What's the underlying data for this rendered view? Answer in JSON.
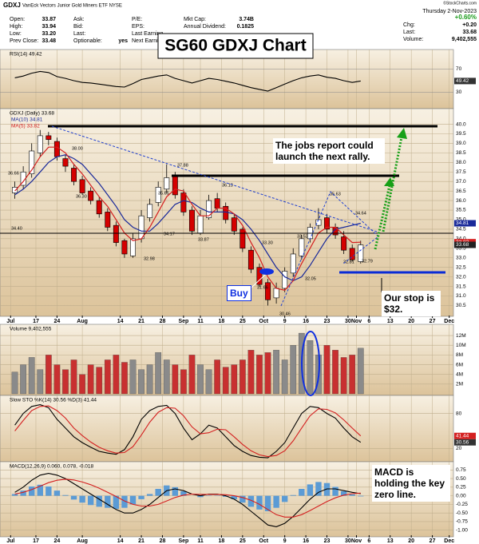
{
  "title": "SG60 GDXJ Chart",
  "header": {
    "symbol": "GDXJ",
    "name": "VanEck Vectors Junior Gold Miners ETF  NYSE",
    "copyright": "©StockCharts.com",
    "date": "Thursday  2-Nov-2023",
    "col1": [
      [
        "Open:",
        "33.87"
      ],
      [
        "High:",
        "33.94"
      ],
      [
        "Low:",
        "33.20"
      ],
      [
        "Prev Close:",
        "33.48"
      ]
    ],
    "col2": [
      [
        "Ask:"
      ],
      [
        "Bid:"
      ],
      [
        "Last:"
      ],
      [
        "Optionable:",
        "yes"
      ]
    ],
    "col3": [
      [
        "P/E:"
      ],
      [
        "EPS:"
      ],
      [
        "Last Earning"
      ],
      [
        "Next Earning"
      ]
    ],
    "col4": [
      [
        "Mkt Cap:",
        "3.74B"
      ],
      [
        "Annual Dividend:",
        "0.1825"
      ]
    ],
    "col5": [
      [
        "+0.60%"
      ],
      [
        "Chg:",
        "+0.20"
      ],
      [
        "Last:",
        "33.68"
      ],
      [
        "Volume:",
        "9,402,555"
      ]
    ]
  },
  "annotations": {
    "jobs": "The jobs report could launch the next rally.",
    "buy": "Buy",
    "stop": "Our stop is $32.",
    "macd": "MACD is holding the key zero line."
  },
  "chart_data": [
    {
      "type": "line",
      "title": "RSI(14) 49.42",
      "ylim": [
        10,
        90
      ],
      "yticks": [
        30,
        70
      ],
      "grid": true,
      "series": [
        {
          "name": "RSI(14)",
          "color": "#000000",
          "values": [
            55,
            58,
            63,
            66,
            64,
            57,
            54,
            50,
            47,
            46,
            44,
            42,
            40,
            39,
            45,
            52,
            55,
            58,
            60,
            54,
            50,
            46,
            50,
            54,
            52,
            49,
            46,
            42,
            38,
            35,
            32,
            38,
            44,
            50,
            55,
            58,
            60,
            56,
            54,
            50,
            47,
            49.42
          ]
        }
      ]
    },
    {
      "type": "candlestick",
      "title": "GDXJ (Daily) 33.68",
      "grid": true,
      "x": [
        4,
        6,
        8,
        10,
        12,
        14,
        16,
        18,
        20,
        22,
        24,
        26,
        28,
        30,
        32,
        34,
        36,
        38,
        40,
        42,
        44,
        46,
        48,
        50,
        52,
        54,
        56,
        58,
        60,
        62,
        64,
        66,
        68,
        70,
        72,
        74,
        76,
        78,
        80,
        82,
        84,
        86
      ],
      "xlim": [
        2,
        108
      ],
      "xticks": [
        {
          "value": 3,
          "label": "Jul"
        },
        {
          "value": 9,
          "label": "17"
        },
        {
          "value": 14,
          "label": "24"
        },
        {
          "value": 20,
          "label": "Aug"
        },
        {
          "value": 29,
          "label": "14"
        },
        {
          "value": 34,
          "label": "21"
        },
        {
          "value": 39,
          "label": "28"
        },
        {
          "value": 44,
          "label": "Sep"
        },
        {
          "value": 48,
          "label": "11"
        },
        {
          "value": 53,
          "label": "18"
        },
        {
          "value": 58,
          "label": "25"
        },
        {
          "value": 63,
          "label": "Oct"
        },
        {
          "value": 68,
          "label": "9"
        },
        {
          "value": 73,
          "label": "16"
        },
        {
          "value": 78,
          "label": "23"
        },
        {
          "value": 83,
          "label": "30"
        },
        {
          "value": 85,
          "label": "Nov"
        },
        {
          "value": 88,
          "label": "6"
        },
        {
          "value": 93,
          "label": "13"
        },
        {
          "value": 98,
          "label": "20"
        },
        {
          "value": 103,
          "label": "27"
        },
        {
          "value": 107,
          "label": "Dec"
        }
      ],
      "ylim": [
        30.1,
        40.4
      ],
      "yticks": [
        30.5,
        {
          "value": 31,
          "label": "31.0"
        },
        31.5,
        {
          "value": 32,
          "label": "32.0"
        },
        32.5,
        {
          "value": 33,
          "label": "33.0"
        },
        33.5,
        {
          "value": 34,
          "label": "34.0"
        },
        34.5,
        {
          "value": 35,
          "label": "35.0"
        },
        35.5,
        {
          "value": 36,
          "label": "36.0"
        },
        36.5,
        {
          "value": 37,
          "label": "37.0"
        },
        37.5,
        {
          "value": 38,
          "label": "38.0"
        },
        38.5,
        {
          "value": 39,
          "label": "39.0"
        },
        39.5,
        {
          "value": 40,
          "label": "40.0"
        }
      ],
      "open": [
        36.4,
        36.8,
        37.4,
        38.5,
        39.4,
        39.1,
        38.2,
        37.7,
        37.1,
        36.5,
        36.0,
        35.4,
        34.7,
        33.9,
        33.1,
        34.0,
        35.1,
        35.9,
        36.6,
        37.3,
        36.4,
        35.5,
        34.3,
        35.1,
        36.1,
        35.7,
        35.1,
        34.5,
        33.4,
        32.5,
        31.7,
        30.9,
        31.4,
        32.2,
        33.1,
        34.0,
        34.7,
        35.1,
        34.6,
        34.1,
        33.5,
        32.8
      ],
      "high": [
        37.0,
        37.8,
        39.0,
        39.7,
        39.6,
        39.3,
        38.4,
        37.9,
        37.3,
        36.7,
        36.2,
        35.6,
        34.9,
        34.0,
        34.3,
        35.5,
        36.1,
        37.0,
        37.9,
        37.5,
        36.6,
        35.7,
        35.5,
        36.3,
        36.4,
        35.9,
        35.3,
        34.6,
        33.6,
        32.7,
        31.9,
        31.7,
        32.5,
        33.5,
        34.2,
        34.8,
        35.6,
        35.3,
        34.8,
        34.4,
        33.7,
        33.9
      ],
      "low": [
        36.1,
        36.6,
        37.2,
        38.3,
        38.9,
        38.1,
        37.5,
        36.8,
        36.3,
        35.8,
        35.1,
        34.4,
        33.6,
        33.0,
        33.0,
        33.8,
        34.9,
        35.7,
        36.4,
        36.1,
        35.2,
        34.2,
        34.2,
        35.0,
        35.4,
        34.8,
        34.2,
        33.3,
        32.2,
        31.5,
        30.5,
        30.6,
        31.2,
        32.0,
        32.9,
        33.8,
        34.5,
        34.3,
        34.0,
        33.2,
        32.8,
        32.7
      ],
      "close": [
        36.7,
        37.5,
        38.6,
        39.4,
        39.2,
        38.3,
        37.8,
        37.0,
        36.4,
        36.0,
        35.3,
        34.6,
        33.8,
        33.2,
        34.0,
        35.2,
        35.8,
        36.7,
        37.2,
        36.3,
        35.4,
        34.4,
        35.2,
        36.0,
        35.6,
        35.0,
        34.4,
        33.5,
        32.4,
        31.6,
        30.8,
        31.4,
        32.3,
        33.2,
        34.0,
        34.6,
        35.0,
        34.5,
        34.2,
        33.4,
        32.9,
        33.68
      ],
      "up_color": "#ffffff",
      "down_color": "#d40000",
      "series": [
        {
          "name": "MA(10) 34.81",
          "color": "#1a2a9a",
          "values": [
            36.3,
            36.6,
            37.0,
            37.5,
            38.0,
            38.3,
            38.4,
            38.2,
            37.9,
            37.4,
            36.9,
            36.3,
            35.7,
            35.0,
            34.6,
            34.4,
            34.4,
            34.8,
            35.3,
            35.8,
            36.0,
            35.9,
            35.6,
            35.4,
            35.4,
            35.4,
            35.3,
            35.0,
            34.5,
            33.9,
            33.2,
            32.5,
            32.0,
            31.8,
            32.0,
            32.6,
            33.3,
            34.0,
            34.5,
            34.6,
            34.7,
            34.81
          ]
        },
        {
          "name": "MA(5) 33.82",
          "color": "#d42020",
          "values": [
            36.5,
            37.0,
            37.6,
            38.3,
            38.8,
            38.8,
            38.5,
            37.9,
            37.4,
            36.8,
            36.2,
            35.7,
            35.0,
            34.3,
            33.9,
            34.0,
            34.6,
            35.4,
            36.2,
            36.6,
            36.5,
            35.8,
            35.2,
            35.2,
            35.6,
            35.6,
            35.3,
            34.7,
            33.8,
            33.0,
            32.0,
            31.4,
            31.3,
            31.8,
            32.7,
            33.5,
            34.3,
            34.6,
            34.6,
            34.2,
            33.8,
            33.82
          ]
        }
      ],
      "price_labels": [
        36.66,
        {
          "value": 38,
          "label": "38.00"
        },
        {
          "value": 36.3,
          "label": "36.30"
        },
        32.98,
        34.17,
        33.87,
        37.88,
        35.65,
        36.13,
        {
          "value": 33.3,
          "label": "33.30"
        },
        31.66,
        30.46,
        32.05,
        33.52,
        35.63,
        34.64,
        32.81,
        32.79,
        {
          "value": 34.4,
          "label": "34.40"
        }
      ]
    },
    {
      "type": "bar",
      "title": "Volume 9,402,555",
      "ylim": [
        0,
        13000000
      ],
      "grid": true,
      "yticks": [
        {
          "value": 2000000,
          "label": "2M"
        },
        {
          "value": 4000000,
          "label": "4M"
        },
        {
          "value": 6000000,
          "label": "6M"
        },
        {
          "value": 8000000,
          "label": "8M"
        },
        {
          "value": 10000000,
          "label": "10M"
        },
        {
          "value": 12000000,
          "label": "12M"
        }
      ],
      "up_color": "#8a8a8a",
      "down_color": "#c83030",
      "values": [
        4500000,
        6000000,
        7500000,
        5000000,
        8000000,
        6000000,
        5000000,
        7000000,
        4000000,
        6000000,
        5500000,
        7000000,
        8000000,
        6500000,
        7000000,
        5000000,
        6000000,
        8500000,
        7000000,
        6000000,
        5000000,
        8000000,
        6000000,
        5000000,
        7000000,
        5500000,
        6000000,
        7000000,
        9000000,
        8000000,
        8500000,
        9000000,
        7000000,
        10000000,
        12500000,
        11000000,
        8000000,
        10000000,
        9000000,
        7500000,
        8000000,
        9402555
      ]
    },
    {
      "type": "line",
      "title": "Slow STO %K(14) 30.56 %D(3) 41.44",
      "ylim": [
        0,
        100
      ],
      "yticks": [
        20,
        80
      ],
      "grid": true,
      "series": [
        {
          "name": "%K(14)",
          "color": "#000000",
          "values": [
            60,
            80,
            92,
            95,
            90,
            70,
            55,
            40,
            30,
            22,
            15,
            12,
            10,
            18,
            40,
            70,
            85,
            92,
            94,
            80,
            55,
            35,
            45,
            60,
            55,
            40,
            25,
            15,
            8,
            5,
            4,
            15,
            30,
            55,
            80,
            92,
            90,
            80,
            72,
            55,
            40,
            30.56
          ]
        },
        {
          "name": "%D(3)",
          "color": "#d42020",
          "values": [
            50,
            68,
            85,
            92,
            93,
            85,
            72,
            55,
            42,
            31,
            22,
            16,
            12,
            13,
            23,
            43,
            65,
            82,
            90,
            89,
            76,
            57,
            45,
            47,
            53,
            52,
            40,
            27,
            16,
            9,
            6,
            8,
            16,
            33,
            55,
            76,
            88,
            87,
            81,
            69,
            55,
            41.44
          ]
        }
      ]
    },
    {
      "type": "line",
      "title": "MACD(12,26,9) 0.060, 0.078, -0.018",
      "ylim": [
        -1.1,
        0.85
      ],
      "grid": true,
      "yticks": [
        {
          "value": -1,
          "label": "-1.00"
        },
        {
          "value": -0.75,
          "label": "-0.75"
        },
        {
          "value": -0.5,
          "label": "-0.50"
        },
        {
          "value": -0.25,
          "label": "-0.25"
        },
        {
          "value": 0,
          "label": "0.00"
        },
        {
          "value": 0.25,
          "label": "0.25"
        },
        {
          "value": 0.5,
          "label": "0.50"
        },
        {
          "value": 0.75,
          "label": "0.75"
        }
      ],
      "series": [
        {
          "name": "Histogram",
          "type": "bar",
          "color": "#5b9bd5",
          "values": [
            0.05,
            0.15,
            0.27,
            0.32,
            0.27,
            0.15,
            0.02,
            -0.11,
            -0.2,
            -0.27,
            -0.32,
            -0.35,
            -0.38,
            -0.35,
            -0.25,
            -0.1,
            0.05,
            0.2,
            0.3,
            0.25,
            0.13,
            0,
            -0.04,
            0.01,
            0.01,
            -0.03,
            -0.1,
            -0.2,
            -0.32,
            -0.4,
            -0.45,
            -0.35,
            -0.18,
            0.02,
            0.2,
            0.33,
            0.4,
            0.37,
            0.26,
            0.13,
            0.04,
            -0.018
          ]
        },
        {
          "name": "MACD(12,26,9)",
          "color": "#000000",
          "values": [
            0.1,
            0.25,
            0.45,
            0.6,
            0.65,
            0.6,
            0.5,
            0.35,
            0.2,
            0.05,
            -0.1,
            -0.25,
            -0.4,
            -0.5,
            -0.5,
            -0.4,
            -0.25,
            -0.05,
            0.15,
            0.2,
            0.15,
            0.05,
            0,
            0.05,
            0.05,
            0,
            -0.1,
            -0.25,
            -0.45,
            -0.65,
            -0.85,
            -0.9,
            -0.8,
            -0.6,
            -0.35,
            -0.1,
            0.1,
            0.2,
            0.2,
            0.15,
            0.1,
            0.06
          ]
        },
        {
          "name": "Signal",
          "color": "#d42020",
          "values": [
            0.05,
            0.1,
            0.18,
            0.28,
            0.38,
            0.45,
            0.48,
            0.46,
            0.4,
            0.32,
            0.22,
            0.1,
            -0.02,
            -0.15,
            -0.25,
            -0.3,
            -0.3,
            -0.25,
            -0.15,
            -0.05,
            0.02,
            0.05,
            0.04,
            0.04,
            0.04,
            0.03,
            0,
            -0.05,
            -0.13,
            -0.25,
            -0.4,
            -0.55,
            -0.62,
            -0.62,
            -0.55,
            -0.43,
            -0.3,
            -0.17,
            -0.06,
            0.02,
            0.06,
            0.078
          ]
        }
      ]
    }
  ]
}
